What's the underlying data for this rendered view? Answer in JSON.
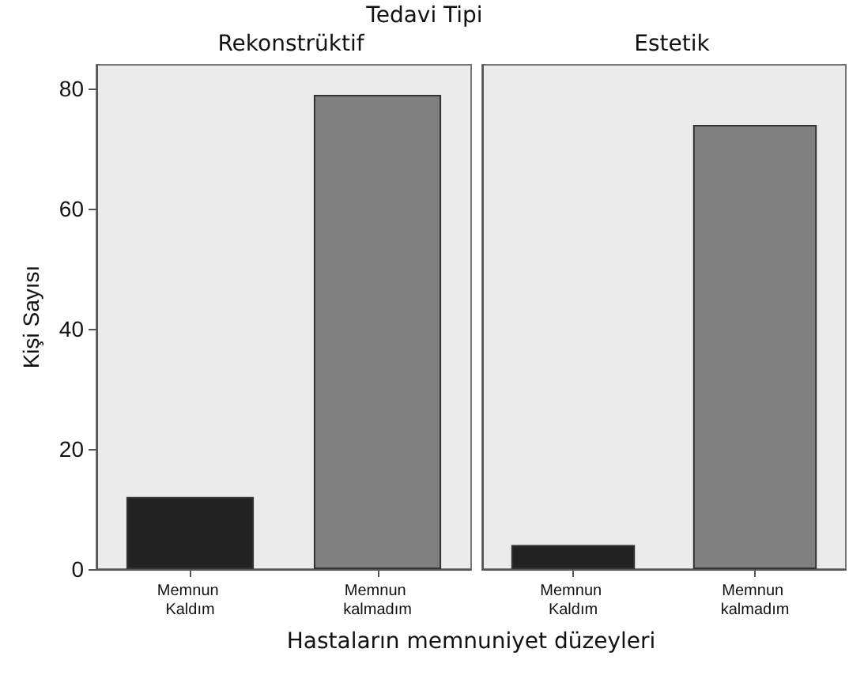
{
  "chart_data": [
    {
      "type": "bar",
      "title": "Tedavi Tipi",
      "subtitle": "Rekonstrüktif",
      "xlabel": "Hastaların memnuniyet düzeyleri",
      "ylabel": "Kişi Sayısı",
      "categories": [
        "Memnun Kaldım",
        "Memnun kalmadım"
      ],
      "values": [
        12,
        79
      ],
      "colors": [
        "#222222",
        "#808080"
      ],
      "ylim": [
        0,
        84
      ],
      "yticks": [
        0,
        20,
        40,
        60,
        80
      ]
    },
    {
      "type": "bar",
      "subtitle": "Estetik",
      "categories": [
        "Memnun Kaldım",
        "Memnun kalmadım"
      ],
      "values": [
        4,
        74
      ],
      "colors": [
        "#222222",
        "#808080"
      ],
      "ylim": [
        0,
        84
      ],
      "yticks": [
        0,
        20,
        40,
        60,
        80
      ],
      "tick_labels": "x"
    }
  ]
}
